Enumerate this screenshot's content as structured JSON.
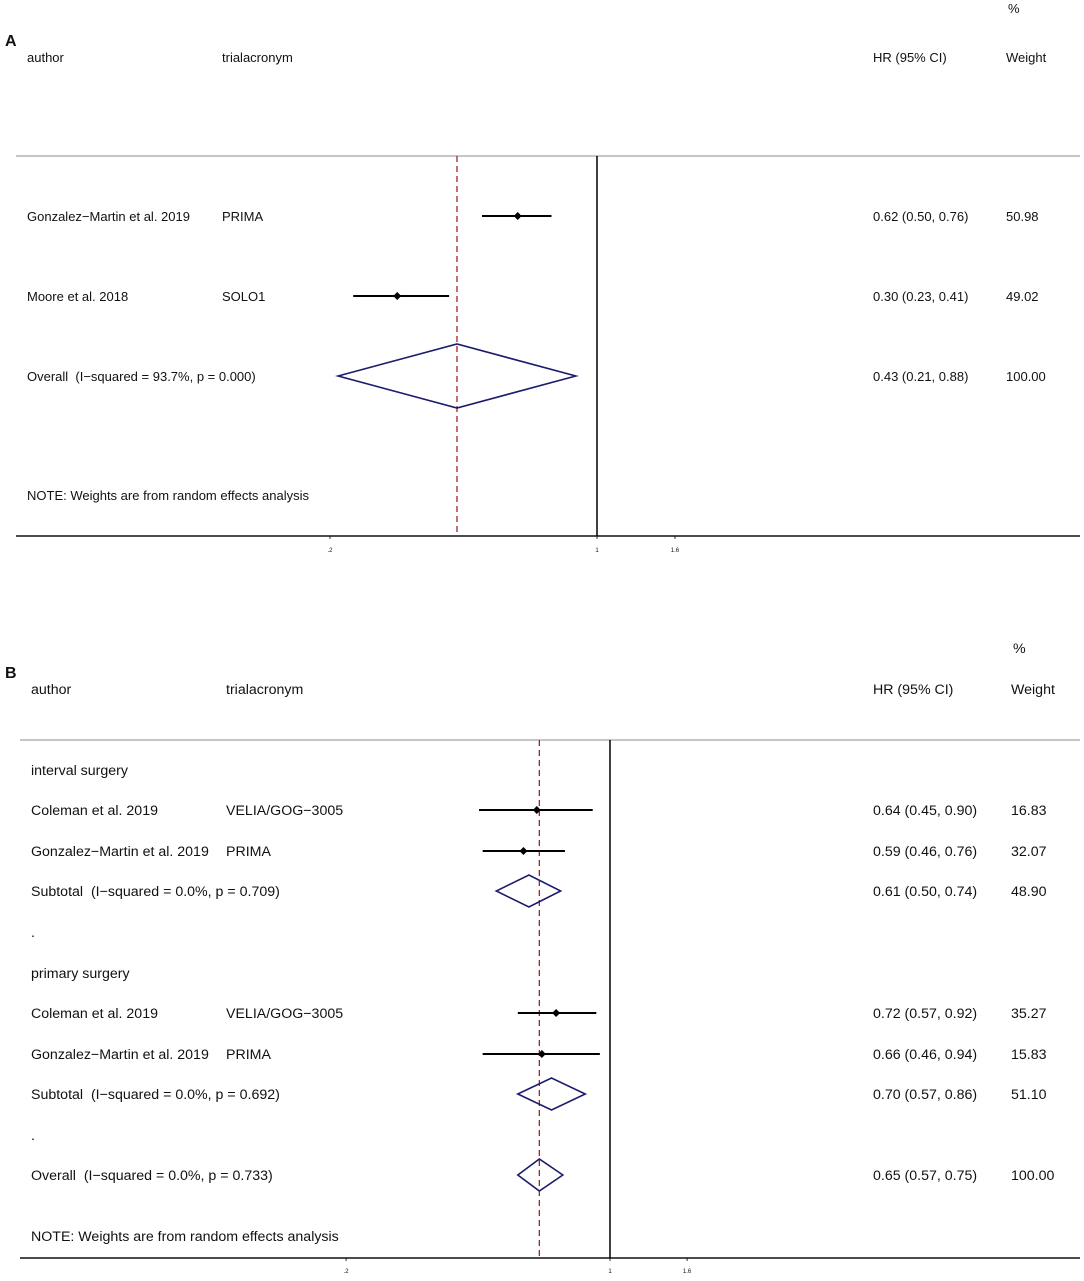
{
  "colors": {
    "marks": "#000000",
    "pooled_diamond": "#1c1c6b",
    "overall_line": "#a3232b",
    "header_rule": "#b3b3b3"
  },
  "chart_data": [
    {
      "type": "scatter",
      "panel_label": "A",
      "x_scale": "log",
      "columns": {
        "weight_unit": "%",
        "author": "author",
        "trial": "trialacronym",
        "estimate": "HR (95% CI)",
        "weight": "Weight"
      },
      "x_ticks": [
        {
          "value": 0.2,
          "label": ".2"
        },
        {
          "value": 1,
          "label": "1"
        },
        {
          "value": 1.6,
          "label": "1.6"
        }
      ],
      "null_line": 1,
      "overall_line": 0.43,
      "rows": [
        {
          "author": "Gonzalez−Martin et al. 2019",
          "trial": "PRIMA",
          "hr": 0.62,
          "ci_low": 0.5,
          "ci_high": 0.76,
          "estimate": "0.62 (0.50, 0.76)",
          "weight": "50.98"
        },
        {
          "author": "Moore et al. 2018",
          "trial": "SOLO1",
          "hr": 0.3,
          "ci_low": 0.23,
          "ci_high": 0.41,
          "estimate": "0.30 (0.23, 0.41)",
          "weight": "49.02"
        },
        {
          "pooled": "Overall  (I−squared = 93.7%, p = 0.000)",
          "hr": 0.43,
          "ci_low": 0.21,
          "ci_high": 0.88,
          "estimate": "0.43 (0.21, 0.88)",
          "weight": "100.00"
        }
      ],
      "note": "NOTE: Weights are from random effects analysis"
    },
    {
      "type": "scatter",
      "panel_label": "B",
      "x_scale": "log",
      "columns": {
        "weight_unit": "%",
        "author": "author",
        "trial": "trialacronym",
        "estimate": "HR (95% CI)",
        "weight": "Weight"
      },
      "x_ticks": [
        {
          "value": 0.2,
          "label": ".2"
        },
        {
          "value": 1,
          "label": "1"
        },
        {
          "value": 1.6,
          "label": "1.6"
        }
      ],
      "null_line": 1,
      "overall_line": 0.65,
      "rows": [
        {
          "group": "interval surgery"
        },
        {
          "author": "Coleman et al. 2019",
          "trial": "VELIA/GOG−3005",
          "hr": 0.64,
          "ci_low": 0.45,
          "ci_high": 0.9,
          "estimate": "0.64 (0.45, 0.90)",
          "weight": "16.83"
        },
        {
          "author": "Gonzalez−Martin et al. 2019",
          "trial": "PRIMA",
          "hr": 0.59,
          "ci_low": 0.46,
          "ci_high": 0.76,
          "estimate": "0.59 (0.46, 0.76)",
          "weight": "32.07"
        },
        {
          "pooled": "Subtotal  (I−squared = 0.0%, p = 0.709)",
          "hr": 0.61,
          "ci_low": 0.5,
          "ci_high": 0.74,
          "estimate": "0.61 (0.50, 0.74)",
          "weight": "48.90"
        },
        {
          "spacer": "."
        },
        {
          "group": "primary surgery"
        },
        {
          "author": "Coleman et al. 2019",
          "trial": "VELIA/GOG−3005",
          "hr": 0.72,
          "ci_low": 0.57,
          "ci_high": 0.92,
          "estimate": "0.72 (0.57, 0.92)",
          "weight": "35.27"
        },
        {
          "author": "Gonzalez−Martin et al. 2019",
          "trial": "PRIMA",
          "hr": 0.66,
          "ci_low": 0.46,
          "ci_high": 0.94,
          "estimate": "0.66 (0.46, 0.94)",
          "weight": "15.83"
        },
        {
          "pooled": "Subtotal  (I−squared = 0.0%, p = 0.692)",
          "hr": 0.7,
          "ci_low": 0.57,
          "ci_high": 0.86,
          "estimate": "0.70 (0.57, 0.86)",
          "weight": "51.10"
        },
        {
          "spacer": "."
        },
        {
          "pooled": "Overall  (I−squared = 0.0%, p = 0.733)",
          "hr": 0.65,
          "ci_low": 0.57,
          "ci_high": 0.75,
          "estimate": "0.65 (0.57, 0.75)",
          "weight": "100.00"
        }
      ],
      "note": "NOTE: Weights are from random effects analysis"
    }
  ]
}
